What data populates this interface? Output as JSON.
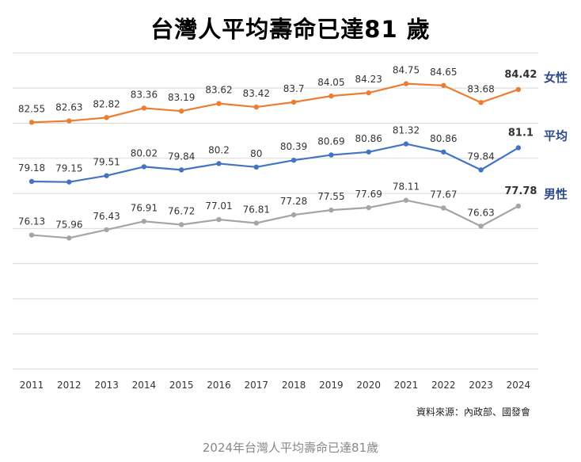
{
  "chart_data": {
    "type": "line",
    "title": "台灣人平均壽命已達81 歲",
    "categories": [
      "2011",
      "2012",
      "2013",
      "2014",
      "2015",
      "2016",
      "2017",
      "2018",
      "2019",
      "2020",
      "2021",
      "2022",
      "2023",
      "2024"
    ],
    "series": [
      {
        "name": "女性",
        "color": "#ED7D31",
        "label_color": "#2F4A8A",
        "values": [
          82.55,
          82.63,
          82.82,
          83.36,
          83.19,
          83.62,
          83.42,
          83.7,
          84.05,
          84.23,
          84.75,
          84.65,
          83.68,
          84.42
        ]
      },
      {
        "name": "平均",
        "color": "#4472C4",
        "label_color": "#2F4A8A",
        "values": [
          79.18,
          79.15,
          79.51,
          80.02,
          79.84,
          80.2,
          80,
          80.39,
          80.69,
          80.86,
          81.32,
          80.86,
          79.84,
          81.1
        ]
      },
      {
        "name": "男性",
        "color": "#A5A5A5",
        "label_color": "#2F4A8A",
        "values": [
          76.13,
          75.96,
          76.43,
          76.91,
          76.72,
          77.01,
          76.81,
          77.28,
          77.55,
          77.69,
          78.11,
          77.67,
          76.63,
          77.78
        ]
      }
    ],
    "value_labels": [
      [
        "82.55",
        "82.63",
        "82.82",
        "83.36",
        "83.19",
        "83.62",
        "83.42",
        "83.7",
        "84.05",
        "84.23",
        "84.75",
        "84.65",
        "83.68",
        "84.42"
      ],
      [
        "79.18",
        "79.15",
        "79.51",
        "80.02",
        "79.84",
        "80.2",
        "80",
        "80.39",
        "80.69",
        "80.86",
        "81.32",
        "80.86",
        "79.84",
        "81.1"
      ],
      [
        "76.13",
        "75.96",
        "76.43",
        "76.91",
        "76.72",
        "77.01",
        "76.81",
        "77.28",
        "77.55",
        "77.69",
        "78.11",
        "77.67",
        "76.63",
        "77.78"
      ]
    ],
    "xlabel": "",
    "ylabel": "",
    "ylim": [
      68.3,
      86.9
    ],
    "gridlines": [
      86.5,
      84.5,
      82.5,
      80.5,
      78.5,
      76.5,
      74.5,
      72.5,
      70.5,
      68.5
    ],
    "grid": true,
    "legend": "right, inline labels at line ends"
  },
  "source": "資料來源：內政部、國發會",
  "caption": "2024年台灣人平均壽命已達81歲"
}
